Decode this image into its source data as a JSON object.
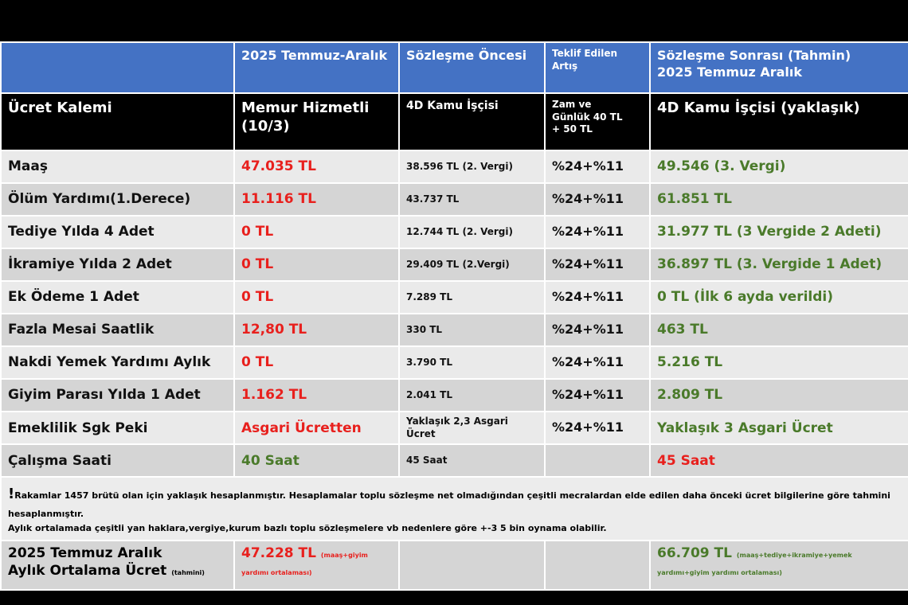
{
  "header": {
    "period": "2025 Temmuz-Aralık",
    "before": "Sözleşme Öncesi",
    "offer": "Teklif Edilen\nArtış",
    "after": "Sözleşme Sonrası (Tahmin)\n2025 Temmuz Aralık"
  },
  "subheader": {
    "item": "Ücret Kalemi",
    "memur": "Memur Hizmetli\n(10/3)",
    "before": "4D Kamu İşçisi",
    "offer": "Zam ve\nGünlük 40 TL\n+ 50 TL",
    "after": "4D Kamu İşçisi (yaklaşık)"
  },
  "rows": [
    {
      "item": "Maaş",
      "memur": "47.035 TL",
      "before": "38.596 TL (2. Vergi)",
      "offer": "%24+%11",
      "after": "49.546 (3. Vergi)",
      "memur_color": "#e8201d",
      "after_color": "#4a7a2a"
    },
    {
      "item": "Ölüm Yardımı(1.Derece)",
      "memur": "11.116 TL",
      "before": "43.737 TL",
      "offer": "%24+%11",
      "after": "61.851 TL",
      "memur_color": "#e8201d",
      "after_color": "#4a7a2a"
    },
    {
      "item": "Tediye Yılda 4 Adet",
      "memur": "0 TL",
      "before": "12.744 TL (2. Vergi)",
      "offer": "%24+%11",
      "after": "31.977 TL (3 Vergide 2 Adeti)",
      "memur_color": "#e8201d",
      "after_color": "#4a7a2a"
    },
    {
      "item": "İkramiye Yılda 2 Adet",
      "memur": "0 TL",
      "before": "29.409 TL (2.Vergi)",
      "offer": "%24+%11",
      "after": "36.897 TL (3. Vergide 1 Adet)",
      "memur_color": "#e8201d",
      "after_color": "#4a7a2a"
    },
    {
      "item": "Ek Ödeme 1 Adet",
      "memur": "0 TL",
      "before": "7.289 TL",
      "offer": "%24+%11",
      "after": "0 TL (İlk 6 ayda verildi)",
      "memur_color": "#e8201d",
      "after_color": "#4a7a2a"
    },
    {
      "item": "Fazla Mesai Saatlik",
      "memur": "12,80 TL",
      "before": "330 TL",
      "offer": "%24+%11",
      "after": "463 TL",
      "memur_color": "#e8201d",
      "after_color": "#4a7a2a"
    },
    {
      "item": "Nakdi Yemek Yardımı Aylık",
      "memur": "0 TL",
      "before": "3.790 TL",
      "offer": "%24+%11",
      "after": "5.216 TL",
      "memur_color": "#e8201d",
      "after_color": "#4a7a2a"
    },
    {
      "item": "Giyim Parası Yılda 1 Adet",
      "memur": "1.162 TL",
      "before": "2.041 TL",
      "offer": "%24+%11",
      "after": "2.809 TL",
      "memur_color": "#e8201d",
      "after_color": "#4a7a2a"
    },
    {
      "item": "Emeklilik Sgk Peki",
      "memur": "Asgari Ücretten",
      "before": "Yaklaşık 2,3 Asgari Ücret",
      "offer": "%24+%11",
      "after": "Yaklaşık 3 Asgari Ücret",
      "memur_color": "#e8201d",
      "after_color": "#4a7a2a"
    },
    {
      "item": "Çalışma Saati",
      "memur": "40 Saat",
      "before": "45 Saat",
      "offer": null,
      "after": "45 Saat",
      "memur_color": "#4a7a2a",
      "after_color": "#e8201d"
    }
  ],
  "note": {
    "mark": "!",
    "text": "Rakamlar 1457 brütü olan için yaklaşık hesaplanmıştır. Hesaplamalar toplu sözleşme net olmadığından çeşitli mecralardan elde edilen daha önceki ücret bilgilerine göre tahmini hesaplanmıştır.\nAylık ortalamada çeşitli yan haklara,vergiye,kurum bazlı toplu sözleşmelere vb nedenlere göre +-3 5 bin oynama olabilir."
  },
  "footer": {
    "label": "2025 Temmuz Aralık\nAylık Ortalama Ücret",
    "label_note": "(tahmini)",
    "memur": "47.228 TL",
    "memur_note": "(maaş+giyim\nyardımı ortalaması)",
    "after": "66.709 TL",
    "after_note": "(maaş+tediye+ikramiye+yemek\nyardımı+giyim yardımı ortalaması)"
  }
}
